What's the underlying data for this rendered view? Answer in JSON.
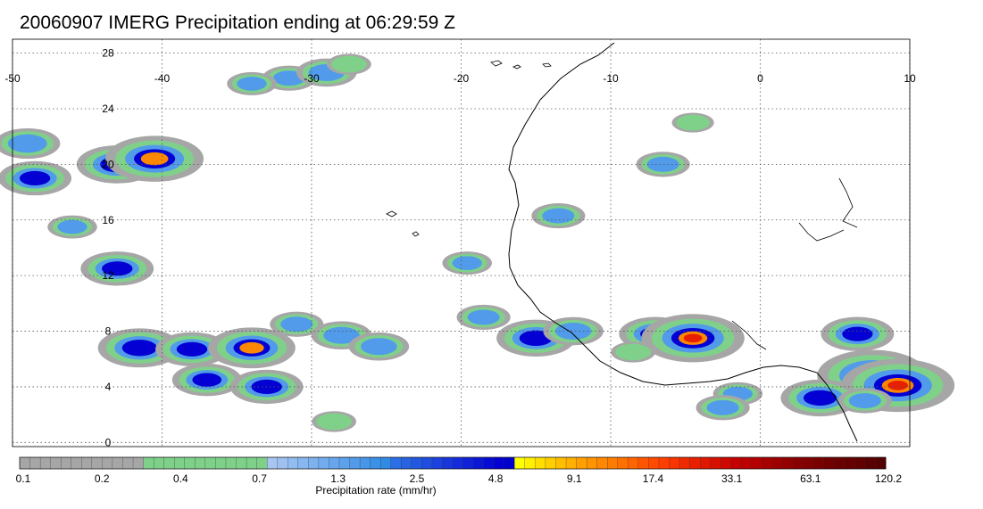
{
  "title": "20060907 IMERG Precipitation ending at 06:29:59 Z",
  "map": {
    "lon_range": [
      -50,
      10
    ],
    "lat_range": [
      -0.3,
      29
    ],
    "lon_ticks": [
      -50,
      -40,
      -30,
      -20,
      -10,
      0,
      10
    ],
    "lat_ticks": [
      0,
      4,
      8,
      12,
      16,
      20,
      24,
      28
    ],
    "lon_tick_labels": [
      "-50",
      "-40",
      "-30",
      "-20",
      "-10",
      "0",
      "10"
    ],
    "lat_tick_labels": [
      "0",
      "4",
      "8",
      "12",
      "16",
      "20",
      "24",
      "28"
    ],
    "grid": "dotted"
  },
  "colorbar": {
    "title": "Precipitation rate (mm/hr)",
    "labels": [
      "0.1",
      "0.2",
      "0.4",
      "0.7",
      "1.3",
      "2.5",
      "4.8",
      "9.1",
      "17.4",
      "33.1",
      "63.1",
      "120.2"
    ],
    "colors": [
      "#a6a6a6",
      "#a6a6a6",
      "#a6a6a6",
      "#a6a6a6",
      "#a6a6a6",
      "#a6a6a6",
      "#a6a6a6",
      "#a6a6a6",
      "#a6a6a6",
      "#a6a6a6",
      "#a6a6a6",
      "#a6a6a6",
      "#7fd18a",
      "#7fd18a",
      "#7fd18a",
      "#7fd18a",
      "#7fd18a",
      "#7fd18a",
      "#7fd18a",
      "#7fd18a",
      "#7fd18a",
      "#7fd18a",
      "#7fd18a",
      "#7fd18a",
      "#a9c6f2",
      "#9ec1f2",
      "#93bcf1",
      "#88b6f0",
      "#7db1ef",
      "#72acee",
      "#67a6ed",
      "#5ca1ec",
      "#519bea",
      "#4696e9",
      "#3b90e8",
      "#308be7",
      "#2b6ee5",
      "#2763e3",
      "#2358e1",
      "#1f4de0",
      "#1b42de",
      "#1737dc",
      "#132cdb",
      "#0f21d9",
      "#0b16d7",
      "#070bd6",
      "#0400d4",
      "#0000cc",
      "#ffff00",
      "#ffef00",
      "#ffdf00",
      "#ffcf00",
      "#ffbf00",
      "#ffb000",
      "#ffa000",
      "#ff9400",
      "#ff8800",
      "#ff7c00",
      "#ff7000",
      "#ff6400",
      "#ff5500",
      "#ff4a00",
      "#ff3f00",
      "#f83400",
      "#f02a00",
      "#e82000",
      "#e01800",
      "#d81000",
      "#cf0800",
      "#c60000",
      "#bd0000",
      "#b40000",
      "#a80000",
      "#9e0000",
      "#940000",
      "#8a0000",
      "#820000",
      "#7a0000",
      "#720000",
      "#6c0000",
      "#660000",
      "#600000",
      "#5a0000",
      "#540000"
    ]
  },
  "precip_cells": [
    {
      "lon": -31.5,
      "lat": 26.2,
      "value": 2.0
    },
    {
      "lon": -34,
      "lat": 25.8,
      "value": 1.5
    },
    {
      "lon": -29,
      "lat": 26.6,
      "value": 3.0
    },
    {
      "lon": -27.5,
      "lat": 27.2,
      "value": 1.0
    },
    {
      "lon": -49,
      "lat": 21.5,
      "value": 4.0
    },
    {
      "lon": -43,
      "lat": 20.0,
      "value": 9.0
    },
    {
      "lon": -40.5,
      "lat": 20.4,
      "value": 20.0
    },
    {
      "lon": -48.5,
      "lat": 19.0,
      "value": 6.0
    },
    {
      "lon": -46,
      "lat": 15.5,
      "value": 1.5
    },
    {
      "lon": -43,
      "lat": 12.5,
      "value": 6.0
    },
    {
      "lon": -41.5,
      "lat": 6.8,
      "value": 10.0
    },
    {
      "lon": -38,
      "lat": 6.7,
      "value": 6.0
    },
    {
      "lon": -34,
      "lat": 6.8,
      "value": 12.0
    },
    {
      "lon": -37,
      "lat": 4.5,
      "value": 5.0
    },
    {
      "lon": -33,
      "lat": 4.0,
      "value": 6.0
    },
    {
      "lon": -31,
      "lat": 8.5,
      "value": 2.0
    },
    {
      "lon": -28,
      "lat": 7.7,
      "value": 3.0
    },
    {
      "lon": -25.5,
      "lat": 6.9,
      "value": 3.0
    },
    {
      "lon": -28.5,
      "lat": 1.5,
      "value": 1.0
    },
    {
      "lon": -15,
      "lat": 7.5,
      "value": 8.0
    },
    {
      "lon": -12.5,
      "lat": 8.0,
      "value": 3.0
    },
    {
      "lon": -18.5,
      "lat": 9.0,
      "value": 2.0
    },
    {
      "lon": -13.5,
      "lat": 16.3,
      "value": 2.0
    },
    {
      "lon": -19.6,
      "lat": 12.9,
      "value": 1.5
    },
    {
      "lon": -7,
      "lat": 7.8,
      "value": 6.0
    },
    {
      "lon": -4.5,
      "lat": 7.5,
      "value": 25.0
    },
    {
      "lon": -8.5,
      "lat": 6.5,
      "value": 1.0
    },
    {
      "lon": -1.5,
      "lat": 3.5,
      "value": 1.5
    },
    {
      "lon": -2.5,
      "lat": 2.5,
      "value": 2.0
    },
    {
      "lon": -6.5,
      "lat": 20.0,
      "value": 2.0
    },
    {
      "lon": -4.5,
      "lat": 23.0,
      "value": 0.8
    },
    {
      "lon": 6.5,
      "lat": 7.8,
      "value": 6.0
    },
    {
      "lon": 7.5,
      "lat": 4.8,
      "value": 35.0
    },
    {
      "lon": 9.2,
      "lat": 4.1,
      "value": 40.0
    },
    {
      "lon": 4.0,
      "lat": 3.2,
      "value": 8.0
    },
    {
      "lon": 7.0,
      "lat": 3.0,
      "value": 2.0
    }
  ]
}
